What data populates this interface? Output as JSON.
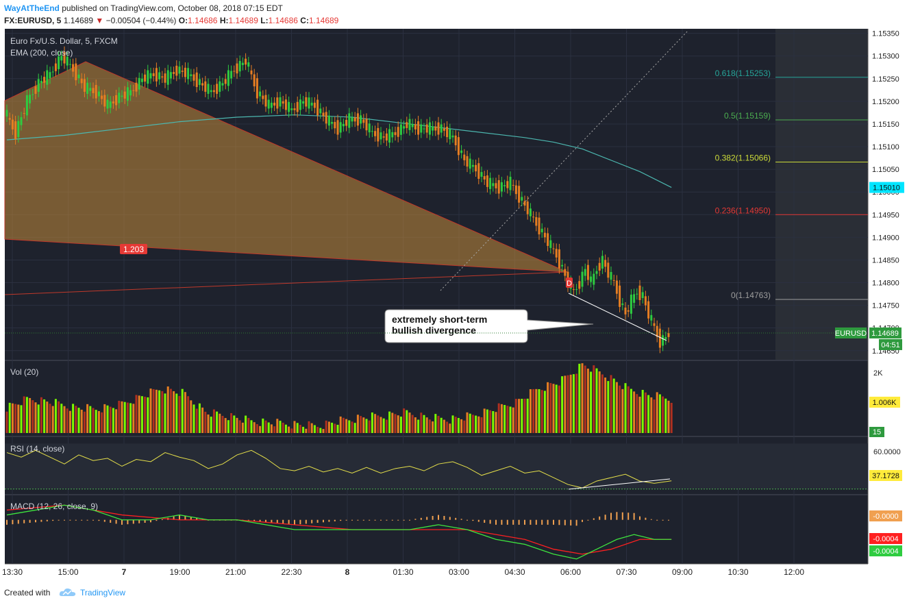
{
  "header": {
    "author": "WayAtTheEnd",
    "published": "published on TradingView.com, October 08, 2018 07:15 EDT",
    "symbol": "FX:EURUSD, 5",
    "last": "1.14689",
    "change": "−0.00504 (−0.44%)",
    "o_label": "O:",
    "o_value": "1.14686",
    "h_label": "H:",
    "h_value": "1.14689",
    "l_label": "L:",
    "l_value": "1.14686",
    "c_label": "C:",
    "c_value": "1.14689"
  },
  "footer": {
    "created": "Created with",
    "brand": "TradingView"
  },
  "colors": {
    "bg": "#1e222d",
    "up": "#2ecc40",
    "down": "#e67e22",
    "ema": "#4cb8b0",
    "rsi": "#e6e04a",
    "macd": "#3ee63e",
    "signal": "#ff2020",
    "hist": "#f0a050"
  },
  "chart_data": [
    {
      "type": "candlestick",
      "title": "Euro Fx/U.S. Dollar, 5, FXCM",
      "indicator_label": "EMA (200, close)",
      "x_tick_labels": [
        "13:30",
        "15:00",
        "7",
        "19:00",
        "21:00",
        "22:30",
        "8",
        "01:30",
        "03:00",
        "04:30",
        "06:00",
        "07:30",
        "09:00",
        "10:30",
        "12:00"
      ],
      "y_tick_labels": [
        "1.15350",
        "1.15300",
        "1.15250",
        "1.15200",
        "1.15150",
        "1.15100",
        "1.15050",
        "1.15000",
        "1.14950",
        "1.14900",
        "1.14850",
        "1.14800",
        "1.14750",
        "1.14700",
        "1.14650"
      ],
      "ylim": [
        1.1463,
        1.1536
      ],
      "close_series": [
        [
          0,
          1.1518
        ],
        [
          4,
          1.1513
        ],
        [
          8,
          1.152
        ],
        [
          12,
          1.1524
        ],
        [
          16,
          1.1526
        ],
        [
          20,
          1.153
        ],
        [
          24,
          1.1527
        ],
        [
          28,
          1.1523
        ],
        [
          32,
          1.1522
        ],
        [
          36,
          1.1519
        ],
        [
          40,
          1.1521
        ],
        [
          44,
          1.1522
        ],
        [
          48,
          1.1525
        ],
        [
          52,
          1.1526
        ],
        [
          56,
          1.1525
        ],
        [
          60,
          1.1527
        ],
        [
          64,
          1.1526
        ],
        [
          68,
          1.1524
        ],
        [
          72,
          1.1522
        ],
        [
          76,
          1.1524
        ],
        [
          80,
          1.1527
        ],
        [
          84,
          1.1529
        ],
        [
          88,
          1.1522
        ],
        [
          92,
          1.1519
        ],
        [
          96,
          1.152
        ],
        [
          100,
          1.1518
        ],
        [
          104,
          1.152
        ],
        [
          108,
          1.1519
        ],
        [
          112,
          1.1516
        ],
        [
          116,
          1.1514
        ],
        [
          120,
          1.1516
        ],
        [
          124,
          1.1516
        ],
        [
          128,
          1.1513
        ],
        [
          132,
          1.1512
        ],
        [
          136,
          1.1513
        ],
        [
          140,
          1.1515
        ],
        [
          144,
          1.1514
        ],
        [
          148,
          1.1514
        ],
        [
          152,
          1.1514
        ],
        [
          156,
          1.1512
        ],
        [
          160,
          1.1507
        ],
        [
          164,
          1.1505
        ],
        [
          168,
          1.1502
        ],
        [
          172,
          1.1501
        ],
        [
          176,
          1.1502
        ],
        [
          180,
          1.1498
        ],
        [
          184,
          1.1494
        ],
        [
          188,
          1.149
        ],
        [
          192,
          1.1486
        ],
        [
          196,
          1.148
        ],
        [
          198,
          1.1478
        ],
        [
          200,
          1.148
        ],
        [
          202,
          1.1483
        ],
        [
          204,
          1.148
        ],
        [
          206,
          1.1483
        ],
        [
          208,
          1.1485
        ],
        [
          210,
          1.1482
        ],
        [
          212,
          1.148
        ],
        [
          214,
          1.1476
        ],
        [
          216,
          1.1473
        ],
        [
          218,
          1.1476
        ],
        [
          220,
          1.1478
        ],
        [
          222,
          1.1477
        ],
        [
          224,
          1.1473
        ],
        [
          226,
          1.147
        ],
        [
          228,
          1.1467
        ],
        [
          230,
          1.1468
        ],
        [
          231,
          1.14689
        ]
      ],
      "ema200": [
        [
          0,
          1.15115
        ],
        [
          20,
          1.15125
        ],
        [
          40,
          1.1514
        ],
        [
          60,
          1.15155
        ],
        [
          80,
          1.15165
        ],
        [
          100,
          1.1517
        ],
        [
          120,
          1.15165
        ],
        [
          140,
          1.1515
        ],
        [
          160,
          1.15135
        ],
        [
          180,
          1.1512
        ],
        [
          190,
          1.1511
        ],
        [
          200,
          1.15095
        ],
        [
          210,
          1.1507
        ],
        [
          220,
          1.15045
        ],
        [
          231,
          1.1501
        ]
      ],
      "last_price": "1.14689",
      "last_price_tag": "EURUSD",
      "countdown": "04:51",
      "ema_value": "1.15010",
      "fib_levels": [
        {
          "label": "0.618(1.15253)",
          "value": 1.15253,
          "color": "#26a69a"
        },
        {
          "label": "0.5(1.15159)",
          "value": 1.15159,
          "color": "#4caf50"
        },
        {
          "label": "0.382(1.15066)",
          "value": 1.15066,
          "color": "#cddc39"
        },
        {
          "label": "0.236(1.14950)",
          "value": 1.1495,
          "color": "#e53935"
        },
        {
          "label": "0(1.14763)",
          "value": 1.14763,
          "color": "#9e9e9e"
        }
      ],
      "pattern_label": "1.203",
      "point_label": "D",
      "annotation": [
        "extremely short-term",
        "bullish divergence"
      ]
    },
    {
      "type": "bar",
      "title": "Vol (20)",
      "y_tick_labels": [
        "2K"
      ],
      "last_value": "1.006K",
      "extra_tag": "15",
      "ylim": [
        0,
        2100
      ],
      "values_sample": [
        750,
        1000,
        900,
        750,
        700,
        800,
        1050,
        1300,
        1150,
        600,
        500,
        350,
        300,
        250,
        200,
        350,
        450,
        500,
        600,
        450,
        400,
        500,
        700,
        900,
        1300,
        1500,
        2000,
        1700,
        1300,
        1100,
        1006
      ]
    },
    {
      "type": "line",
      "title": "RSI (14, close)",
      "y_tick_labels": [
        "60.0000"
      ],
      "last_value": "37.1728",
      "ylim": [
        25,
        75
      ],
      "values": [
        [
          0,
          62
        ],
        [
          5,
          58
        ],
        [
          10,
          64
        ],
        [
          15,
          58
        ],
        [
          20,
          52
        ],
        [
          25,
          60
        ],
        [
          30,
          55
        ],
        [
          35,
          57
        ],
        [
          40,
          50
        ],
        [
          45,
          56
        ],
        [
          50,
          54
        ],
        [
          55,
          62
        ],
        [
          60,
          58
        ],
        [
          65,
          55
        ],
        [
          70,
          48
        ],
        [
          75,
          52
        ],
        [
          80,
          60
        ],
        [
          85,
          64
        ],
        [
          90,
          57
        ],
        [
          95,
          48
        ],
        [
          100,
          46
        ],
        [
          105,
          50
        ],
        [
          110,
          45
        ],
        [
          115,
          48
        ],
        [
          120,
          44
        ],
        [
          125,
          49
        ],
        [
          130,
          44
        ],
        [
          135,
          48
        ],
        [
          140,
          50
        ],
        [
          145,
          46
        ],
        [
          150,
          52
        ],
        [
          155,
          54
        ],
        [
          160,
          49
        ],
        [
          165,
          42
        ],
        [
          170,
          46
        ],
        [
          175,
          50
        ],
        [
          180,
          44
        ],
        [
          185,
          46
        ],
        [
          190,
          40
        ],
        [
          195,
          34
        ],
        [
          200,
          31
        ],
        [
          205,
          37
        ],
        [
          210,
          40
        ],
        [
          215,
          43
        ],
        [
          220,
          37
        ],
        [
          225,
          35
        ],
        [
          231,
          37.17
        ]
      ]
    },
    {
      "type": "line",
      "title": "MACD (12, 26, close, 9)",
      "last_values": [
        "-0.0000",
        "-0.0004",
        "-0.0004"
      ],
      "ylim": [
        -0.0009,
        0.0005
      ],
      "macd": [
        [
          0,
          0.0001
        ],
        [
          10,
          0.0002
        ],
        [
          20,
          0.0003
        ],
        [
          30,
          0.0002
        ],
        [
          40,
          0.0
        ],
        [
          50,
          0.0
        ],
        [
          60,
          0.0001
        ],
        [
          70,
          0.0
        ],
        [
          80,
          0.0
        ],
        [
          90,
          -0.0001
        ],
        [
          100,
          -0.0002
        ],
        [
          110,
          -0.0002
        ],
        [
          120,
          -0.0002
        ],
        [
          130,
          -0.0002
        ],
        [
          140,
          -0.0002
        ],
        [
          150,
          -0.0001
        ],
        [
          160,
          -0.0002
        ],
        [
          170,
          -0.0004
        ],
        [
          180,
          -0.0005
        ],
        [
          190,
          -0.0007
        ],
        [
          198,
          -0.0008
        ],
        [
          205,
          -0.0006
        ],
        [
          212,
          -0.0004
        ],
        [
          218,
          -0.0003
        ],
        [
          225,
          -0.0004
        ],
        [
          231,
          -0.0004
        ]
      ],
      "signal": [
        [
          0,
          0.0002
        ],
        [
          20,
          0.0003
        ],
        [
          40,
          0.0001
        ],
        [
          60,
          0.0
        ],
        [
          80,
          0.0
        ],
        [
          100,
          -0.0001
        ],
        [
          120,
          -0.0002
        ],
        [
          140,
          -0.0002
        ],
        [
          160,
          -0.0002
        ],
        [
          170,
          -0.0003
        ],
        [
          180,
          -0.0004
        ],
        [
          190,
          -0.0006
        ],
        [
          200,
          -0.0007
        ],
        [
          210,
          -0.0006
        ],
        [
          220,
          -0.0004
        ],
        [
          231,
          -0.0004
        ]
      ]
    }
  ]
}
